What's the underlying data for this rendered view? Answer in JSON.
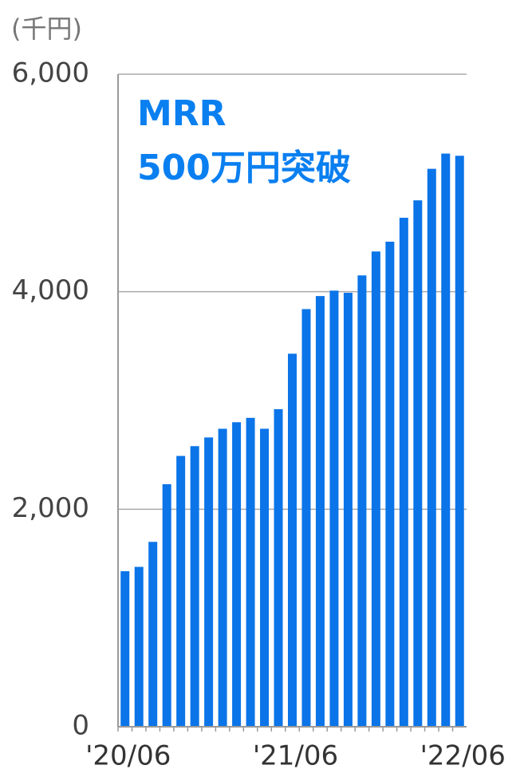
{
  "chart_data": {
    "type": "bar",
    "unit_label": "(千円)",
    "annotation": [
      "MRR",
      "500万円突破"
    ],
    "annotation_color": "#0a7ff0",
    "categories": [
      "'20/06",
      null,
      null,
      null,
      null,
      null,
      null,
      null,
      null,
      null,
      null,
      null,
      "'21/06",
      null,
      null,
      null,
      null,
      null,
      null,
      null,
      null,
      null,
      null,
      null,
      "'22/06"
    ],
    "values": [
      1430,
      1470,
      1700,
      2230,
      2490,
      2580,
      2660,
      2740,
      2800,
      2840,
      2740,
      2920,
      3430,
      3840,
      3960,
      4010,
      3990,
      4150,
      4370,
      4460,
      4680,
      4840,
      5130,
      5270,
      5250
    ],
    "color": "#0b74e8",
    "ylim": [
      0,
      6000
    ],
    "yticks": [
      0,
      {
        "value": 2000,
        "label": "2,000"
      },
      {
        "value": 4000,
        "label": "4,000"
      },
      {
        "value": 6000,
        "label": "6,000"
      }
    ],
    "grid": true
  }
}
